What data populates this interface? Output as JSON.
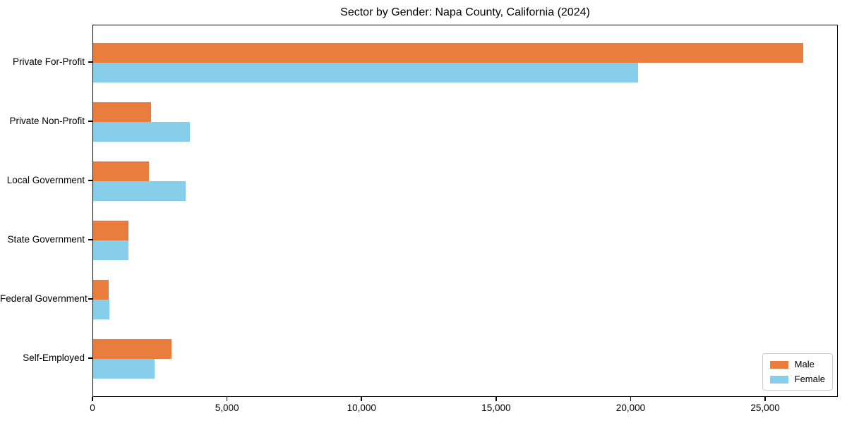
{
  "figure": {
    "background": "#ffffff",
    "spine_color": "#000000"
  },
  "chart_data": {
    "type": "bar",
    "orientation": "horizontal",
    "title": "Sector by Gender: Napa County, California (2024)",
    "xlabel": "",
    "ylabel": "",
    "categories": [
      "Private For-Profit",
      "Private Non-Profit",
      "Local Government",
      "State Government",
      "Federal Government",
      "Self-Employed"
    ],
    "series": [
      {
        "name": "Male",
        "color": "#e87d3e",
        "values": [
          26380,
          2160,
          2080,
          1320,
          570,
          2900
        ]
      },
      {
        "name": "Female",
        "color": "#87ceeb",
        "values": [
          20260,
          3600,
          3440,
          1300,
          610,
          2290
        ]
      }
    ],
    "xlim": [
      0,
      27700
    ],
    "x_tick_values": [
      0,
      5000,
      10000,
      15000,
      20000,
      25000
    ],
    "x_tick_labels": [
      "0",
      "5,000",
      "10,000",
      "15,000",
      "20,000",
      "25,000"
    ],
    "grid": false,
    "legend_position": "lower right"
  },
  "legend": {
    "items": [
      {
        "label": "Male",
        "color": "#e87d3e"
      },
      {
        "label": "Female",
        "color": "#87ceeb"
      }
    ]
  }
}
